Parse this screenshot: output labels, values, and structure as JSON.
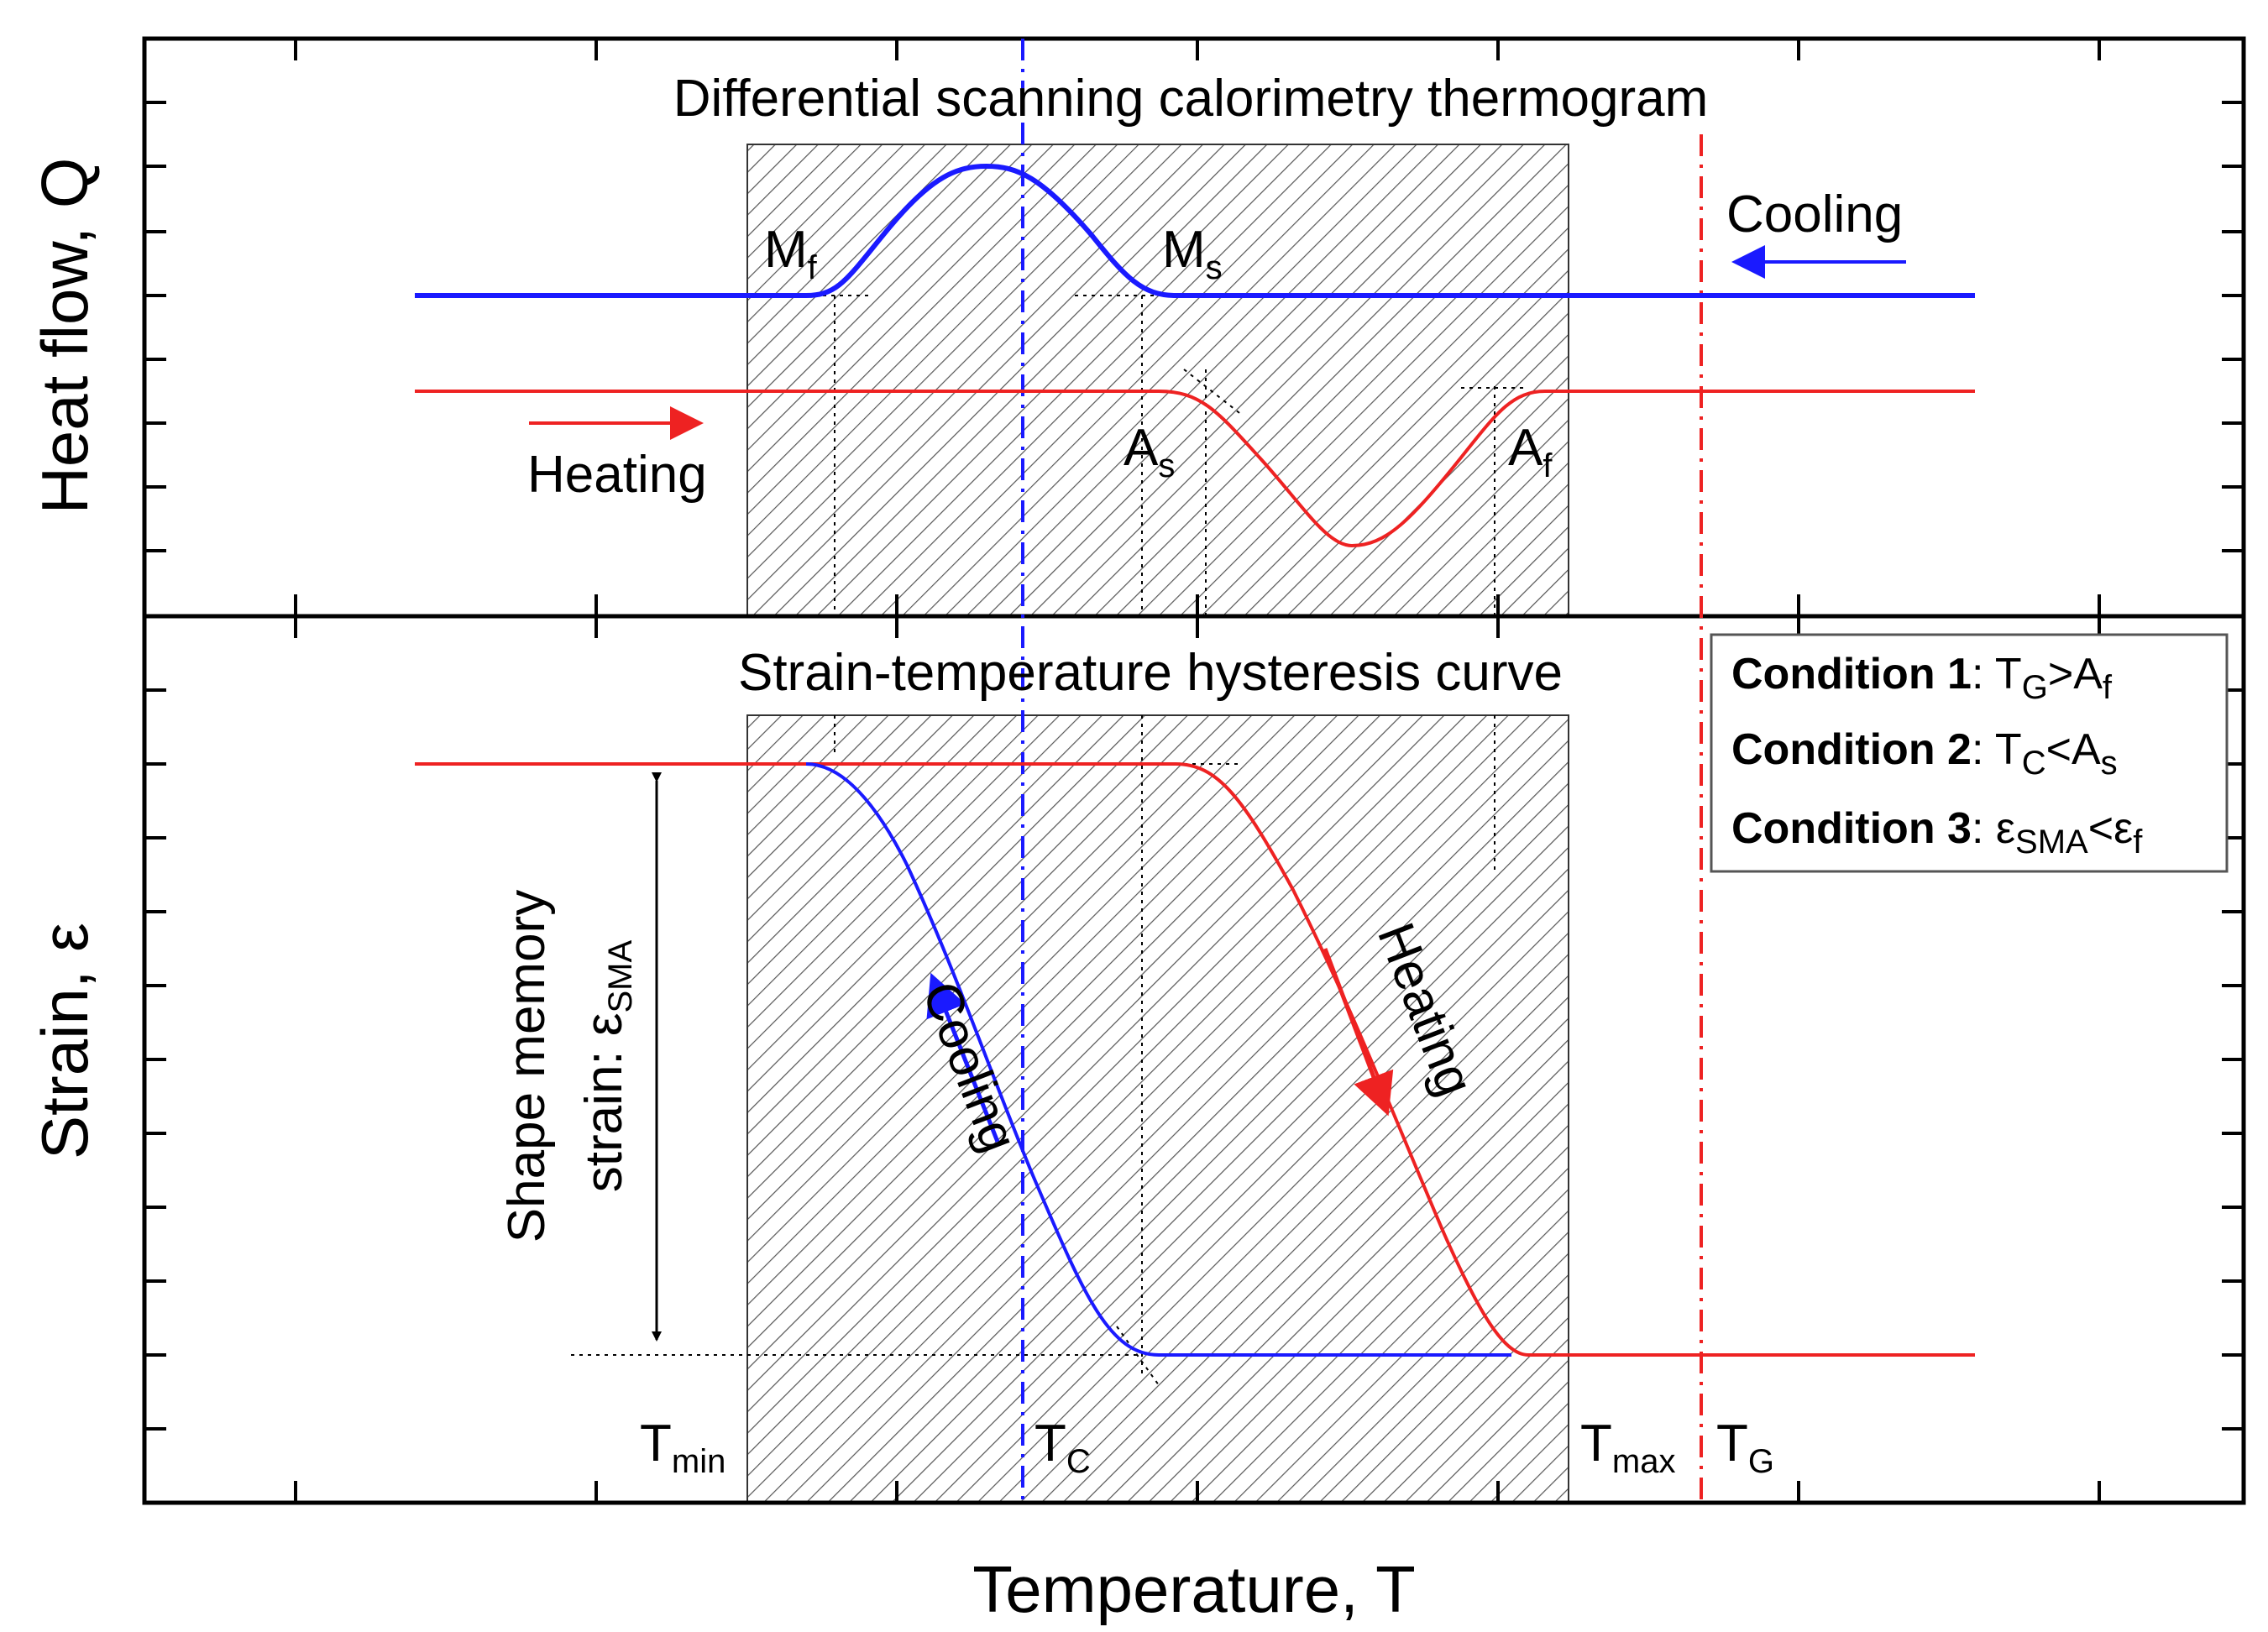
{
  "figure": {
    "y_axis_top": "Heat flow, Q",
    "y_axis_bottom": "Strain, ε",
    "x_axis": "Temperature, T"
  },
  "top_panel": {
    "title": "Differential scanning calorimetry thermogram",
    "cooling_label": "Cooling",
    "heating_label": "Heating",
    "Mf": {
      "main": "M",
      "sub": "f"
    },
    "Ms": {
      "main": "M",
      "sub": "s"
    },
    "As": {
      "main": "A",
      "sub": "s"
    },
    "Af": {
      "main": "A",
      "sub": "f"
    }
  },
  "bottom_panel": {
    "title": "Strain-temperature hysteresis curve",
    "cooling_label": "Cooling",
    "heating_label": "Heating",
    "sma_strain_line1": "Shape memory",
    "sma_strain_line2": "strain: ε",
    "sma_strain_sub": "SMA",
    "Tmin": {
      "main": "T",
      "sub": "min"
    },
    "Tc": {
      "main": "T",
      "sub": "C"
    },
    "Tmax": {
      "main": "T",
      "sub": "max"
    },
    "Tg": {
      "main": "T",
      "sub": "G"
    }
  },
  "conditions": [
    {
      "label": "Condition 1",
      "sep": ": ",
      "a": "T",
      "a_sub": "G",
      "op": ">",
      "b": "A",
      "b_sub": "f"
    },
    {
      "label": "Condition 2",
      "sep": ": ",
      "a": "T",
      "a_sub": "C",
      "op": "<",
      "b": "A",
      "b_sub": "s"
    },
    {
      "label": "Condition 3",
      "sep": ": ",
      "a": "ε",
      "a_sub": "SMA",
      "op": "<",
      "b": "ε",
      "b_sub": "f"
    }
  ],
  "colors": {
    "cooling": "#1a1aff",
    "heating": "#ee2222",
    "axis": "#000000"
  }
}
